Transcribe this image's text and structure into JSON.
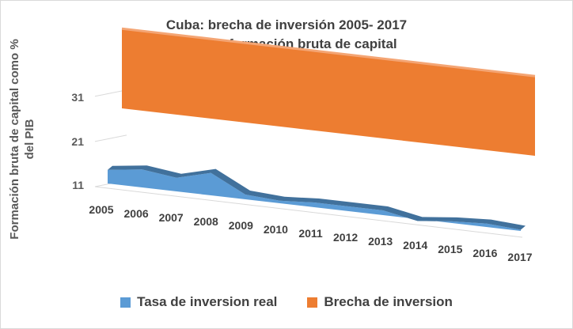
{
  "chart_data": {
    "type": "area",
    "title": "Cuba: brecha de inversión 2005- 2017",
    "subtitle": "Tasa de formación bruta de capital",
    "ylabel_line1": "Formación bruta de capital como %",
    "ylabel_line2": "del PIB",
    "categories": [
      "2005",
      "2006",
      "2007",
      "2008",
      "2009",
      "2010",
      "2011",
      "2012",
      "2013",
      "2014",
      "2015",
      "2016",
      "2017"
    ],
    "y_ticks": [
      "11",
      "21",
      "31"
    ],
    "ylim": [
      11,
      31
    ],
    "series": [
      {
        "name": "Tasa de inversion real",
        "color": "#5b9bd5",
        "values": [
          13,
          14,
          13,
          15,
          11,
          10.5,
          11,
          11,
          11,
          9.5,
          10.3,
          10.7,
          10.2
        ]
      },
      {
        "name": "Brecha de inversion",
        "color": "#ed7d31",
        "values": [
          29,
          29,
          29,
          29,
          29,
          29,
          29,
          29,
          29,
          29,
          29,
          29,
          29
        ]
      }
    ],
    "legend_position": "bottom",
    "grid": true
  }
}
